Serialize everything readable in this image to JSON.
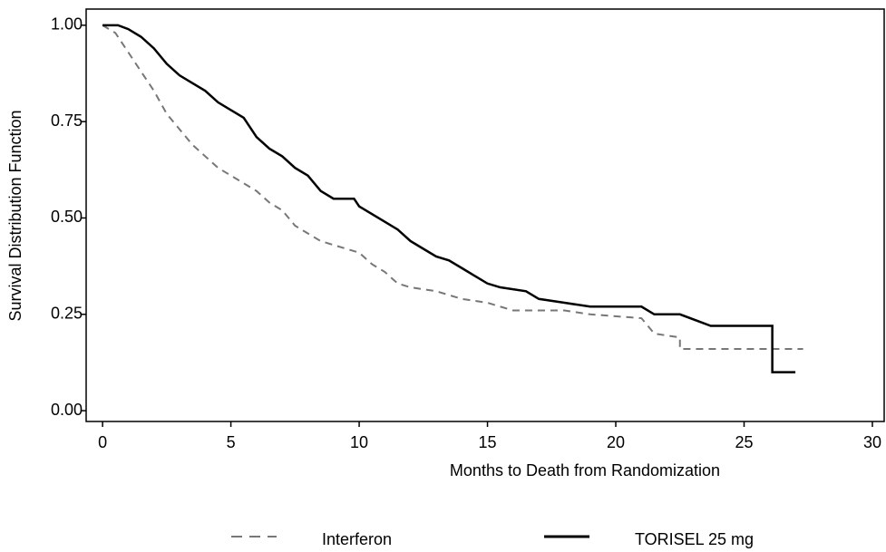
{
  "chart_data": {
    "type": "line",
    "xlabel": "Months to Death from Randomization",
    "ylabel": "Survival Distribution Function",
    "xlim": [
      -0.64,
      30.46
    ],
    "ylim": [
      -0.028,
      1.042
    ],
    "xticks": [
      0,
      5,
      10,
      15,
      20,
      25,
      30
    ],
    "yticks": [
      {
        "value": 0,
        "label": "0.00"
      },
      0.25,
      {
        "value": 0.5,
        "label": "0.50"
      },
      0.75,
      {
        "value": 1,
        "label": "1.00"
      }
    ],
    "series": [
      {
        "name": "Interferon",
        "color": "#777777",
        "dash": true,
        "x": [
          0,
          0.5,
          1,
          1.5,
          2,
          2.5,
          3,
          3.5,
          4,
          4.5,
          5,
          5.5,
          6,
          6.5,
          7,
          7.5,
          8,
          8.5,
          9,
          10,
          10.5,
          11,
          11.5,
          12,
          13,
          14,
          15,
          16,
          18,
          19,
          21,
          21.5,
          22.5,
          22.5,
          27.3
        ],
        "values": [
          1,
          0.98,
          0.93,
          0.88,
          0.83,
          0.77,
          0.73,
          0.69,
          0.66,
          0.63,
          0.61,
          0.59,
          0.57,
          0.54,
          0.52,
          0.48,
          0.46,
          0.44,
          0.43,
          0.41,
          0.38,
          0.36,
          0.33,
          0.32,
          0.31,
          0.29,
          0.28,
          0.26,
          0.26,
          0.25,
          0.24,
          0.2,
          0.19,
          0.16,
          0.16
        ]
      },
      {
        "name": "TORISEL 25 mg",
        "color": "#000000",
        "dash": false,
        "x": [
          0,
          0.6,
          1,
          1.5,
          2,
          2.5,
          3,
          3.5,
          4,
          4.5,
          5,
          5.5,
          6,
          6.5,
          7,
          7.5,
          8,
          8.5,
          9,
          9.8,
          10,
          10.5,
          11,
          11.5,
          12,
          12.5,
          13,
          13.5,
          14,
          14.5,
          15,
          15.5,
          16.5,
          17,
          18,
          19,
          21,
          21.5,
          22.5,
          23.7,
          26.1,
          26.1,
          27
        ],
        "values": [
          1,
          1,
          0.99,
          0.97,
          0.94,
          0.9,
          0.87,
          0.85,
          0.83,
          0.8,
          0.78,
          0.76,
          0.71,
          0.68,
          0.66,
          0.63,
          0.61,
          0.57,
          0.55,
          0.55,
          0.53,
          0.51,
          0.49,
          0.47,
          0.44,
          0.42,
          0.4,
          0.39,
          0.37,
          0.35,
          0.33,
          0.32,
          0.31,
          0.29,
          0.28,
          0.27,
          0.27,
          0.25,
          0.25,
          0.22,
          0.22,
          0.1,
          0.1
        ]
      }
    ]
  }
}
